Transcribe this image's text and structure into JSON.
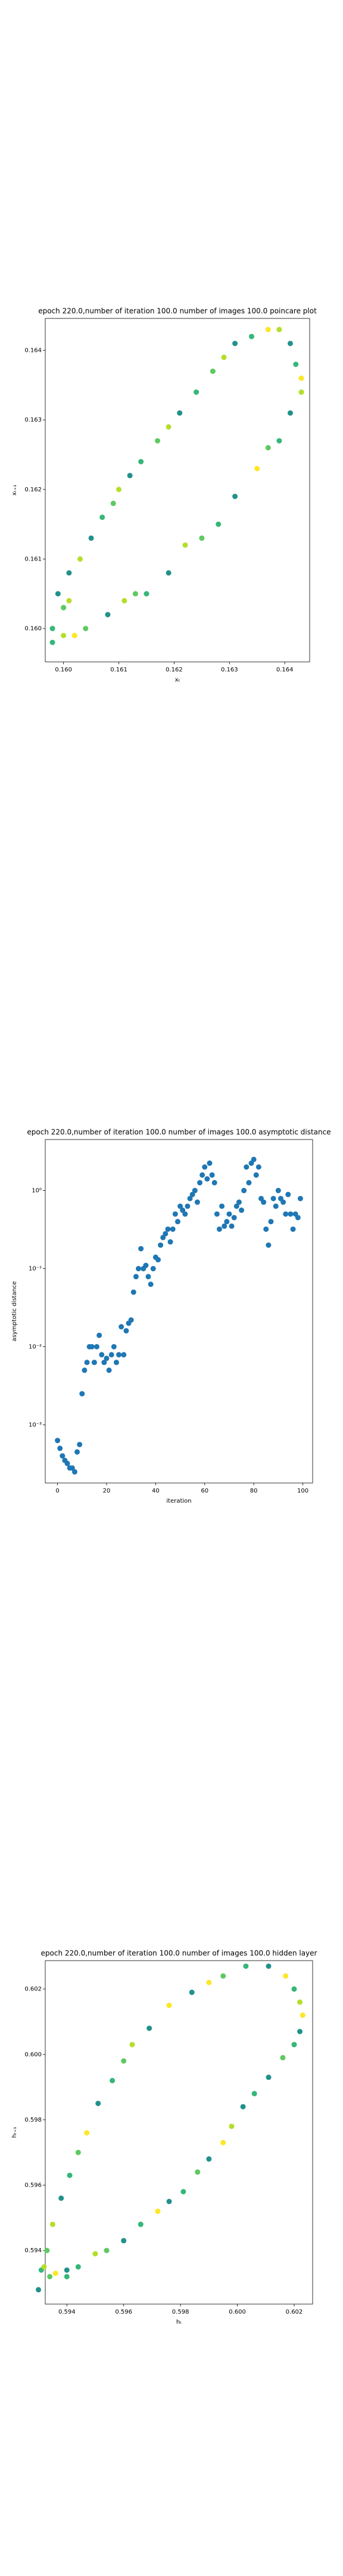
{
  "chart_data": [
    {
      "type": "scatter",
      "title": "epoch 220.0,number of iteration 100.0 number of images 100.0 poincare plot",
      "x_label": "xₜ",
      "y_label": "xₜ₊₁",
      "x": [
        0.1598,
        0.16,
        0.1601,
        0.1603,
        0.1605,
        0.1607,
        0.1609,
        0.161,
        0.1612,
        0.1614,
        0.1617,
        0.1619,
        0.1621,
        0.1624,
        0.1627,
        0.1629,
        0.1631,
        0.1634,
        0.1637,
        0.1639,
        0.1641,
        0.1642,
        0.1643,
        0.1643,
        0.1641,
        0.1639,
        0.1637,
        0.1635,
        0.1631,
        0.1628,
        0.1625,
        0.1622,
        0.1619,
        0.1615,
        0.1613,
        0.1611,
        0.1608,
        0.1604,
        0.1602,
        0.16,
        0.1598,
        0.1599,
        0.16,
        0.1601
      ],
      "values": [
        0.16,
        0.1603,
        0.1608,
        0.161,
        0.1613,
        0.1616,
        0.1618,
        0.162,
        0.1622,
        0.1624,
        0.1627,
        0.1629,
        0.1631,
        0.1634,
        0.1637,
        0.1639,
        0.1641,
        0.1642,
        0.1643,
        0.1643,
        0.1641,
        0.1638,
        0.1636,
        0.1634,
        0.1631,
        0.1627,
        0.1626,
        0.1623,
        0.1619,
        0.1615,
        0.1613,
        0.1612,
        0.1608,
        0.1605,
        0.1605,
        0.1604,
        0.1602,
        0.16,
        0.1599,
        0.1599,
        0.1598,
        0.1605,
        0.1603,
        0.1604
      ],
      "colors": [
        "#35b779",
        "#5ec962",
        "#21918c",
        "#b5de2b",
        "#21918c",
        "#35b779",
        "#5ec962",
        "#b5de2b",
        "#21918c",
        "#35b779",
        "#5ec962",
        "#b5de2b",
        "#21918c",
        "#35b779",
        "#5ec962",
        "#b5de2b",
        "#21918c",
        "#35b779",
        "#fde725",
        "#b5de2b",
        "#21918c",
        "#35b779",
        "#fde725",
        "#b5de2b",
        "#21918c",
        "#35b779",
        "#5ec962",
        "#fde725",
        "#21918c",
        "#35b779",
        "#5ec962",
        "#b5de2b",
        "#21918c",
        "#35b779",
        "#5ec962",
        "#b5de2b",
        "#21918c",
        "#5ec962",
        "#fde725",
        "#b5de2b",
        "#35b779",
        "#21918c",
        "#5ec962",
        "#b5de2b"
      ],
      "xlim": [
        0.15967,
        0.16445
      ],
      "xticks": [
        {
          "value": 0.16,
          "label": "0.160"
        },
        0.161,
        0.162,
        0.163,
        0.164
      ],
      "ylim": [
        0.15952,
        0.16446
      ],
      "yticks": [
        {
          "value": 0.16,
          "label": "0.160"
        },
        0.161,
        0.162,
        0.163,
        0.164
      ]
    },
    {
      "type": "scatter",
      "title": "epoch 220.0,number of iteration 100.0  number of images 100.0 asymptotic distance",
      "x_label": "iteration",
      "y_label": "asymptotic distance",
      "log_y": true,
      "color": "#1f77b4",
      "x": [
        0,
        1,
        2,
        3,
        4,
        5,
        6,
        7,
        8,
        9,
        10,
        11,
        12,
        13,
        14,
        15,
        16,
        17,
        18,
        19,
        20,
        21,
        22,
        23,
        24,
        25,
        26,
        27,
        28,
        29,
        30,
        31,
        32,
        33,
        34,
        35,
        36,
        37,
        38,
        39,
        40,
        41,
        42,
        43,
        44,
        45,
        46,
        47,
        48,
        49,
        50,
        51,
        52,
        53,
        54,
        55,
        56,
        57,
        58,
        59,
        60,
        61,
        62,
        63,
        64,
        65,
        66,
        67,
        68,
        69,
        70,
        71,
        72,
        73,
        74,
        75,
        76,
        77,
        78,
        79,
        80,
        81,
        82,
        83,
        84,
        85,
        86,
        87,
        88,
        89,
        90,
        91,
        92,
        93,
        94,
        95,
        96,
        97,
        98,
        99
      ],
      "values": [
        0.00063,
        0.0005,
        0.0004,
        0.00035,
        0.00032,
        0.00028,
        0.00028,
        0.00025,
        0.00045,
        0.00056,
        0.0025,
        0.005,
        0.0063,
        0.01,
        0.01,
        0.0063,
        0.01,
        0.014,
        0.0079,
        0.0063,
        0.0071,
        0.005,
        0.0079,
        0.01,
        0.0063,
        0.0079,
        0.018,
        0.0079,
        0.016,
        0.02,
        0.022,
        0.05,
        0.079,
        0.1,
        0.18,
        0.1,
        0.11,
        0.079,
        0.063,
        0.1,
        0.14,
        0.13,
        0.2,
        0.25,
        0.28,
        0.32,
        0.22,
        0.32,
        0.5,
        0.4,
        0.63,
        0.56,
        0.5,
        0.63,
        0.79,
        0.89,
        1,
        0.71,
        1.26,
        1.58,
        2,
        1.41,
        2.24,
        1.58,
        1.26,
        0.5,
        0.32,
        0.63,
        0.35,
        0.4,
        0.5,
        0.35,
        0.45,
        0.63,
        0.71,
        0.56,
        1,
        2,
        1.26,
        2.24,
        2.5,
        1.58,
        2,
        0.79,
        0.71,
        0.32,
        0.2,
        0.4,
        0.79,
        0.63,
        1,
        0.79,
        0.71,
        0.5,
        0.89,
        0.5,
        0.32,
        0.5,
        0.45,
        0.79
      ],
      "xlim": [
        -5,
        104
      ],
      "xticks": [
        0,
        20,
        40,
        60,
        80,
        100
      ],
      "ylim": [
        0.00018,
        4.5
      ],
      "yticks": [
        {
          "value": 0.001,
          "label": "10⁻³"
        },
        {
          "value": 0.01,
          "label": "10⁻²"
        },
        {
          "value": 0.1,
          "label": "10⁻¹"
        },
        {
          "value": 1,
          "label": "10⁰"
        }
      ]
    },
    {
      "type": "scatter",
      "title": "epoch 220.0,number of iteration 100.0  number of images 100.0 hidden layer",
      "x_label": "hₜ",
      "y_label": "hₜ₊₁",
      "x": [
        0.593,
        0.5931,
        0.5933,
        0.5935,
        0.5938,
        0.5941,
        0.5944,
        0.5947,
        0.5951,
        0.5956,
        0.596,
        0.5963,
        0.5969,
        0.5976,
        0.5984,
        0.599,
        0.5995,
        0.6003,
        0.6011,
        0.6017,
        0.602,
        0.6022,
        0.6023,
        0.6022,
        0.602,
        0.6016,
        0.6011,
        0.6006,
        0.6002,
        0.5998,
        0.5995,
        0.599,
        0.5986,
        0.5981,
        0.5976,
        0.5972,
        0.5966,
        0.596,
        0.5954,
        0.595,
        0.5944,
        0.594,
        0.5936,
        0.5934,
        0.5932,
        0.594
      ],
      "values": [
        0.5928,
        0.5934,
        0.594,
        0.5948,
        0.5956,
        0.5963,
        0.597,
        0.5976,
        0.5985,
        0.5992,
        0.5998,
        0.6003,
        0.6008,
        0.6015,
        0.6019,
        0.6022,
        0.6024,
        0.6027,
        0.6027,
        0.6024,
        0.602,
        0.6016,
        0.6012,
        0.6007,
        0.6003,
        0.5999,
        0.5993,
        0.5988,
        0.5984,
        0.5978,
        0.5973,
        0.5968,
        0.5964,
        0.5958,
        0.5955,
        0.5952,
        0.5948,
        0.5943,
        0.594,
        0.5939,
        0.5935,
        0.5934,
        0.5933,
        0.5932,
        0.5935,
        0.5932
      ],
      "colors": [
        "#21918c",
        "#35b779",
        "#5ec962",
        "#b5de2b",
        "#21918c",
        "#35b779",
        "#5ec962",
        "#fde725",
        "#21918c",
        "#35b779",
        "#5ec962",
        "#b5de2b",
        "#21918c",
        "#fde725",
        "#21918c",
        "#fde725",
        "#5ec962",
        "#35b779",
        "#21918c",
        "#fde725",
        "#35b779",
        "#b5de2b",
        "#fde725",
        "#21918c",
        "#35b779",
        "#5ec962",
        "#21918c",
        "#35b779",
        "#21918c",
        "#b5de2b",
        "#fde725",
        "#21918c",
        "#5ec962",
        "#35b779",
        "#21918c",
        "#fde725",
        "#35b779",
        "#21918c",
        "#5ec962",
        "#b5de2b",
        "#35b779",
        "#21918c",
        "#fde725",
        "#5ec962",
        "#b5de2b",
        "#35b779"
      ],
      "xlim": [
        0.59324,
        0.60265
      ],
      "xticks": [
        0.594,
        0.596,
        0.598,
        {
          "value": 0.6,
          "label": "0.600"
        },
        0.602
      ],
      "ylim": [
        0.59236,
        0.60287
      ],
      "yticks": [
        0.594,
        0.596,
        0.598,
        {
          "value": 0.6,
          "label": "0.600"
        },
        0.602
      ]
    }
  ]
}
